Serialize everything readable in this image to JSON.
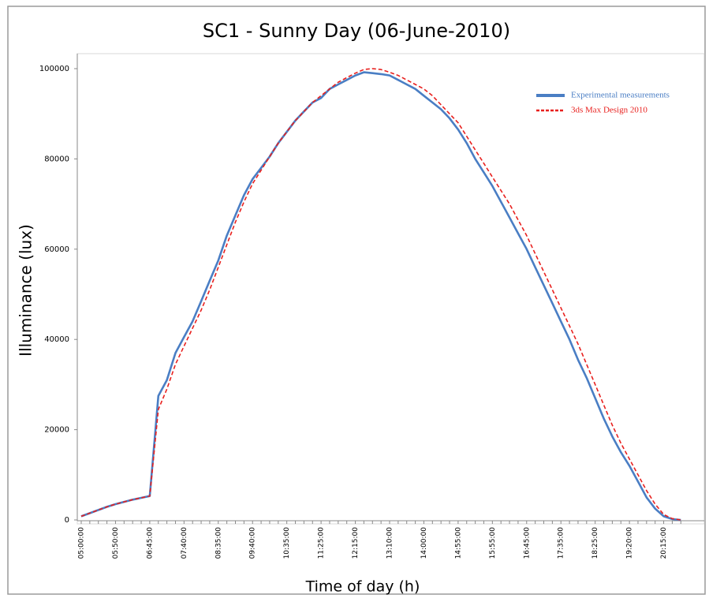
{
  "chart_data": {
    "type": "line",
    "title": "SC1 - Sunny Day (06-June-2010)",
    "x_label": "Time of day (h)",
    "y_label": "Illuminance (lux)",
    "categories": [
      "05:00:00",
      null,
      null,
      null,
      "05:50:00",
      null,
      null,
      null,
      "06:45:00",
      null,
      null,
      null,
      "07:40:00",
      null,
      null,
      null,
      "08:35:00",
      null,
      null,
      null,
      "09:40:00",
      null,
      null,
      null,
      "10:35:00",
      null,
      null,
      null,
      "11:25:00",
      null,
      null,
      null,
      "12:15:00",
      null,
      null,
      null,
      "13:10:00",
      null,
      null,
      null,
      "14:00:00",
      null,
      null,
      null,
      "14:55:00",
      null,
      null,
      null,
      "15:55:00",
      null,
      null,
      null,
      "16:45:00",
      null,
      null,
      null,
      "17:35:00",
      null,
      null,
      null,
      "18:25:00",
      null,
      null,
      null,
      "19:20:00",
      null,
      null,
      null,
      "20:15:00",
      null,
      null
    ],
    "series": [
      {
        "name": "Experimental measurements",
        "color": "#4a7ec4",
        "dash": false,
        "values": [
          800,
          1500,
          2200,
          2900,
          3500,
          4000,
          4500,
          4900,
          5300,
          27500,
          31000,
          37000,
          40500,
          44000,
          48500,
          53000,
          57500,
          63000,
          67500,
          72000,
          75500,
          78000,
          80500,
          83500,
          86000,
          88500,
          90500,
          92500,
          93500,
          95500,
          96500,
          97500,
          98500,
          99200,
          99000,
          98800,
          98500,
          97500,
          96500,
          95500,
          94000,
          92500,
          91000,
          89000,
          86500,
          83500,
          80000,
          77000,
          74000,
          70500,
          67000,
          63500,
          60000,
          56000,
          52000,
          48000,
          44000,
          40000,
          35500,
          31500,
          27000,
          22500,
          18500,
          15000,
          12000,
          8500,
          5000,
          2500,
          800,
          200,
          0
        ]
      },
      {
        "name": "3ds Max Design 2010",
        "color": "#e8201e",
        "dash": true,
        "values": [
          800,
          1500,
          2200,
          2900,
          3500,
          4000,
          4500,
          4900,
          5300,
          24500,
          29000,
          34500,
          38500,
          42500,
          46500,
          51000,
          56000,
          61000,
          66000,
          70500,
          74500,
          77500,
          80500,
          83500,
          86000,
          88500,
          90500,
          92500,
          94000,
          95500,
          97000,
          98000,
          99000,
          99800,
          100000,
          99800,
          99200,
          98500,
          97500,
          96500,
          95500,
          94000,
          92000,
          90000,
          88000,
          85000,
          82000,
          79000,
          76000,
          73000,
          70000,
          66500,
          63000,
          59000,
          55000,
          51000,
          47000,
          43000,
          39000,
          34500,
          30000,
          25500,
          21000,
          17000,
          13500,
          10000,
          6500,
          3500,
          1200,
          300,
          0
        ]
      }
    ],
    "ylim": [
      0,
      100000
    ],
    "yticks": [
      0,
      20000,
      40000,
      60000,
      80000,
      100000
    ],
    "grid": false,
    "legend": "top-right"
  }
}
